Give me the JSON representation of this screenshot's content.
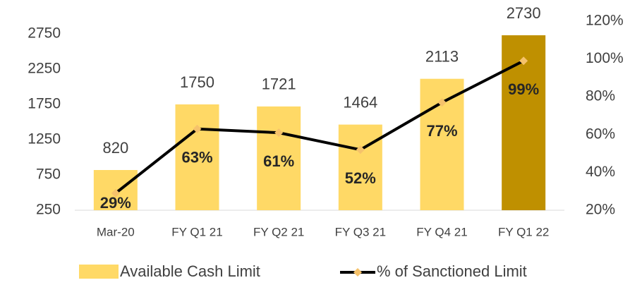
{
  "chart_data": {
    "type": "bar",
    "categories": [
      "Mar-20",
      "FY Q1 21",
      "FY Q2 21",
      "FY Q3 21",
      "FY Q4 21",
      "FY Q1 22"
    ],
    "series": [
      {
        "name": "Available Cash Limit",
        "type": "bar",
        "colors": [
          "#FFD966",
          "#FFD966",
          "#FFD966",
          "#FFD966",
          "#FFD966",
          "#BF9000"
        ],
        "values": [
          820,
          1750,
          1721,
          1464,
          2113,
          2730
        ]
      },
      {
        "name": "% of Sanctioned Limit",
        "type": "line",
        "axis": "y2",
        "color": "#000000",
        "marker_color": "#F5C26B",
        "values": [
          29,
          63,
          61,
          52,
          77,
          99
        ],
        "value_labels": [
          "29%",
          "63%",
          "61%",
          "52%",
          "77%",
          "99%"
        ]
      }
    ],
    "ylim": [
      250,
      2930
    ],
    "yticks": [
      250,
      750,
      1250,
      1750,
      2250,
      2750
    ],
    "y2lim": [
      20,
      120
    ],
    "y2ticks": [
      {
        "value": 20,
        "label": "20%"
      },
      {
        "value": 40,
        "label": "40%"
      },
      {
        "value": 60,
        "label": "60%"
      },
      {
        "value": 80,
        "label": "80%"
      },
      {
        "value": 100,
        "label": "100%"
      },
      {
        "value": 120,
        "label": "120%"
      }
    ],
    "legend": "bottom"
  }
}
